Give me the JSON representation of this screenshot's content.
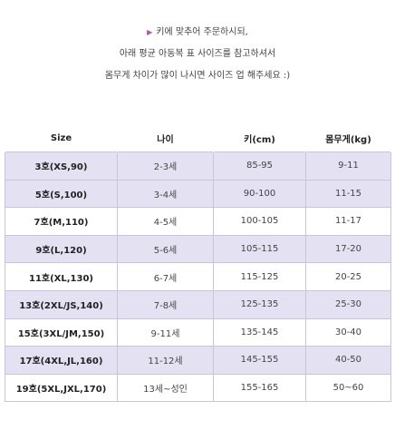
{
  "intro": {
    "arrow": "▶",
    "line1": "키에 맞추어 주문하시되,",
    "line2": "아래 평균 아동복 표 사이즈를 참고하셔서",
    "line3": "몸무게 차이가 많이 나시면 사이즈 업 해주세요 :)"
  },
  "table": {
    "headers": [
      "Size",
      "나이",
      "키(cm)",
      "몸무게(kg)"
    ],
    "rows": [
      {
        "size": "3호(XS,90)",
        "age": "2-3세",
        "height": "85-95",
        "weight": "9-11"
      },
      {
        "size": "5호(S,100)",
        "age": "3-4세",
        "height": "90-100",
        "weight": "11-15"
      },
      {
        "size": "7호(M,110)",
        "age": "4-5세",
        "height": "100-105",
        "weight": "11-17"
      },
      {
        "size": "9호(L,120)",
        "age": "5-6세",
        "height": "105-115",
        "weight": "17-20"
      },
      {
        "size": "11호(XL,130)",
        "age": "6-7세",
        "height": "115-125",
        "weight": "20-25"
      },
      {
        "size": "13호(2XL/JS,140)",
        "age": "7-8세",
        "height": "125-135",
        "weight": "25-30"
      },
      {
        "size": "15호(3XL/JM,150)",
        "age": "9-11세",
        "height": "135-145",
        "weight": "30-40"
      },
      {
        "size": "17호(4XL,JL,160)",
        "age": "11-12세",
        "height": "145-155",
        "weight": "40-50"
      },
      {
        "size": "19호(5XL,JXL,170)",
        "age": "13세~성인",
        "height": "155-165",
        "weight": "50~60"
      }
    ]
  },
  "colors": {
    "accent_arrow": "#b34fb3",
    "row_highlight": "#e4e1f3",
    "border": "#c9c4de"
  }
}
